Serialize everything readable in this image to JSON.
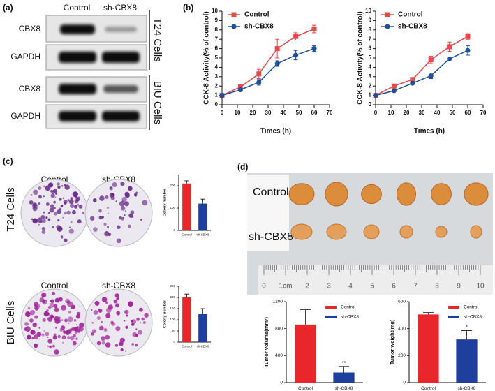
{
  "panels": [
    "(a)",
    "(b)",
    "(c)",
    "(d)"
  ],
  "blot": {
    "columns": [
      "Control",
      "sh-CBX8"
    ],
    "rows": [
      "CBX8",
      "GAPDH",
      "CBX8",
      "GAPDH"
    ],
    "groups": [
      "T24 Cells",
      "BIU Cells"
    ]
  },
  "colony": {
    "columns": [
      "Control",
      "sh-CBX8",
      "Control",
      "sh-CBX8"
    ],
    "groups": [
      "T24 Cells",
      "BIU Cells"
    ]
  },
  "tumor_photo": {
    "rows": [
      "Control",
      "sh-CBX8"
    ],
    "ruler_labels": [
      "0",
      "1cm",
      "2",
      "3",
      "4",
      "5",
      "6",
      "7",
      "8",
      "9",
      "10"
    ]
  },
  "chart_data": [
    {
      "type": "line",
      "xlabel": "Times (h)",
      "ylabel": "CCK-8 Activity(% of control)",
      "x": [
        0,
        12,
        24,
        36,
        48,
        60
      ],
      "xlim": [
        0,
        70
      ],
      "xticks": [
        0,
        10,
        20,
        30,
        40,
        50,
        60,
        70
      ],
      "ylim": [
        0,
        10
      ],
      "yticks": [
        0,
        1,
        2,
        3,
        4,
        5,
        6,
        7,
        8,
        9,
        10
      ],
      "series": [
        {
          "name": "Control",
          "color": "#e8474c",
          "marker": "square",
          "values": [
            1,
            1.9,
            3.3,
            6,
            7.3,
            8.1
          ],
          "errors": [
            0.1,
            0.2,
            0.5,
            1.0,
            0.4,
            0.4
          ]
        },
        {
          "name": "sh-CBX8",
          "color": "#1f4e9c",
          "marker": "circle",
          "values": [
            1,
            1.6,
            2.4,
            4.4,
            5.3,
            6
          ],
          "errors": [
            0.1,
            0.15,
            0.3,
            0.3,
            0.5,
            0.3
          ]
        }
      ]
    },
    {
      "type": "line",
      "xlabel": "Times (h)",
      "ylabel": "CCK-8 Activity(% of control)",
      "x": [
        0,
        12,
        24,
        36,
        48,
        60
      ],
      "xlim": [
        0,
        70
      ],
      "xticks": [
        0,
        10,
        20,
        30,
        40,
        50,
        60,
        70
      ],
      "ylim": [
        0,
        10
      ],
      "yticks": [
        0,
        1,
        2,
        3,
        4,
        5,
        6,
        7,
        8,
        9,
        10
      ],
      "series": [
        {
          "name": "Control",
          "color": "#e8474c",
          "marker": "square",
          "values": [
            1,
            2,
            2.7,
            4.8,
            6.2,
            7.3
          ],
          "errors": [
            0.1,
            0.1,
            0.15,
            0.4,
            0.5,
            0.3
          ]
        },
        {
          "name": "sh-CBX8",
          "color": "#1f4e9c",
          "marker": "circle",
          "values": [
            1,
            1.5,
            2.3,
            3.1,
            4.9,
            5.8
          ],
          "errors": [
            0.1,
            0.1,
            0.1,
            0.3,
            0.1,
            0.5
          ]
        }
      ]
    },
    {
      "type": "bar",
      "ylabel": "Colony number",
      "categories": [
        "Control",
        "sh-CBX8"
      ],
      "values": [
        210,
        120
      ],
      "errors": [
        12,
        20
      ],
      "colors": [
        "#e8262b",
        "#1f3f9c"
      ],
      "ylim": [
        0,
        250
      ],
      "yticks": [
        0,
        100,
        200
      ]
    },
    {
      "type": "bar",
      "ylabel": "Colony number",
      "categories": [
        "Control",
        "sh-CBX8"
      ],
      "values": [
        200,
        125
      ],
      "errors": [
        15,
        25
      ],
      "colors": [
        "#e8262b",
        "#1f3f9c"
      ],
      "ylim": [
        0,
        250
      ],
      "yticks": [
        0,
        50,
        100,
        150,
        200,
        250
      ]
    },
    {
      "type": "bar",
      "ylabel": "Tumor volume(mm³)",
      "categories": [
        "Control",
        "sh-CBX8"
      ],
      "values": [
        860,
        150
      ],
      "errors": [
        220,
        90
      ],
      "colors": [
        "#e8262b",
        "#1f3f9c"
      ],
      "ylim": [
        0,
        1200
      ],
      "yticks": [
        0,
        400,
        800,
        1200
      ],
      "legend": true,
      "annotations": [
        {
          "text": "**",
          "at": "sh-CBX8"
        }
      ]
    },
    {
      "type": "bar",
      "ylabel": "Tumor weight(mg)",
      "categories": [
        "Control",
        "sh-CBX8"
      ],
      "values": [
        505,
        320
      ],
      "errors": [
        15,
        65
      ],
      "colors": [
        "#e8262b",
        "#1f3f9c"
      ],
      "ylim": [
        0,
        600
      ],
      "yticks": [
        0,
        200,
        400,
        600
      ],
      "legend": true,
      "annotations": [
        {
          "text": "*",
          "at": "sh-CBX8"
        }
      ]
    }
  ]
}
